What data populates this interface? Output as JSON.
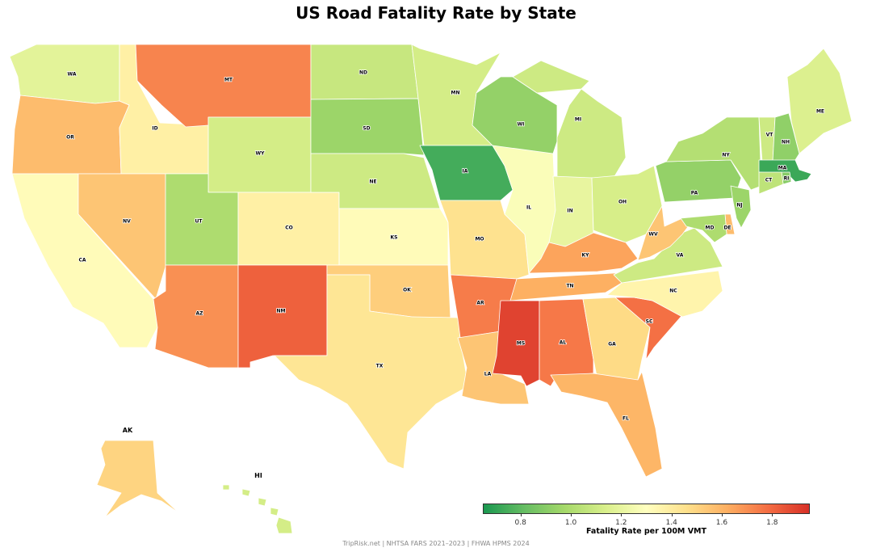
{
  "title": "US Road Fatality Rate by State",
  "colorbar": {
    "label": "Fatality Rate per 100M VMT",
    "ticks": [
      "0.8",
      "1.0",
      "1.2",
      "1.4",
      "1.6",
      "1.8"
    ],
    "colormap": "RdYlGn_r",
    "low_color": "#1a9850",
    "mid_color": "#ffffbf",
    "high_color": "#d73027"
  },
  "footer": "TripRisk.net  |  NHTSA FARS 2021–2023  |  FHWA HPMS 2024",
  "chart_data": {
    "type": "choropleth",
    "title": "US Road Fatality Rate by State",
    "value_label": "Fatality Rate per 100M VMT",
    "range": [
      0.65,
      1.95
    ],
    "inset_labels": [
      "AK",
      "HI"
    ],
    "states": [
      {
        "abbr": "WA",
        "value": 1.18
      },
      {
        "abbr": "OR",
        "value": 1.58
      },
      {
        "abbr": "CA",
        "value": 1.32
      },
      {
        "abbr": "ID",
        "value": 1.38
      },
      {
        "abbr": "NV",
        "value": 1.55
      },
      {
        "abbr": "MT",
        "value": 1.73
      },
      {
        "abbr": "WY",
        "value": 1.12
      },
      {
        "abbr": "UT",
        "value": 1.0
      },
      {
        "abbr": "CO",
        "value": 1.38
      },
      {
        "abbr": "AZ",
        "value": 1.7
      },
      {
        "abbr": "NM",
        "value": 1.82
      },
      {
        "abbr": "ND",
        "value": 1.08
      },
      {
        "abbr": "SD",
        "value": 0.95
      },
      {
        "abbr": "NE",
        "value": 1.1
      },
      {
        "abbr": "KS",
        "value": 1.32
      },
      {
        "abbr": "OK",
        "value": 1.52
      },
      {
        "abbr": "TX",
        "value": 1.43
      },
      {
        "abbr": "MN",
        "value": 1.12
      },
      {
        "abbr": "IA",
        "value": 0.74
      },
      {
        "abbr": "MO",
        "value": 1.45
      },
      {
        "abbr": "AR",
        "value": 1.75
      },
      {
        "abbr": "LA",
        "value": 1.55
      },
      {
        "abbr": "WI",
        "value": 0.93
      },
      {
        "abbr": "IL",
        "value": 1.28
      },
      {
        "abbr": "MI",
        "value": 1.1
      },
      {
        "abbr": "IN",
        "value": 1.2
      },
      {
        "abbr": "OH",
        "value": 1.13
      },
      {
        "abbr": "KY",
        "value": 1.65
      },
      {
        "abbr": "TN",
        "value": 1.62
      },
      {
        "abbr": "MS",
        "value": 1.9
      },
      {
        "abbr": "AL",
        "value": 1.76
      },
      {
        "abbr": "GA",
        "value": 1.48
      },
      {
        "abbr": "FL",
        "value": 1.6
      },
      {
        "abbr": "SC",
        "value": 1.78
      },
      {
        "abbr": "NC",
        "value": 1.36
      },
      {
        "abbr": "VA",
        "value": 1.1
      },
      {
        "abbr": "WV",
        "value": 1.55
      },
      {
        "abbr": "PA",
        "value": 0.93
      },
      {
        "abbr": "NY",
        "value": 1.02
      },
      {
        "abbr": "VT",
        "value": 1.1
      },
      {
        "abbr": "NH",
        "value": 0.92
      },
      {
        "abbr": "ME",
        "value": 1.15
      },
      {
        "abbr": "MA",
        "value": 0.72
      },
      {
        "abbr": "RI",
        "value": 0.9
      },
      {
        "abbr": "CT",
        "value": 1.05
      },
      {
        "abbr": "NJ",
        "value": 0.95
      },
      {
        "abbr": "DE",
        "value": 1.58
      },
      {
        "abbr": "MD",
        "value": 1.0
      },
      {
        "abbr": "AK",
        "value": 1.5
      },
      {
        "abbr": "HI",
        "value": 1.12
      }
    ]
  }
}
